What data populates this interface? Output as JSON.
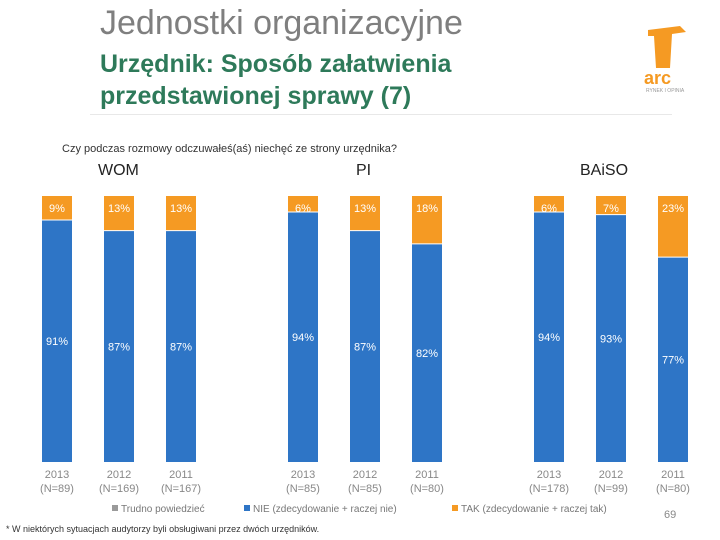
{
  "header": {
    "title": "Jednostki organizacyjne",
    "subtitle_line1": "Urzędnik: Sposób załatwienia",
    "subtitle_line2": "przedstawionej sprawy (7)"
  },
  "logo": {
    "text": "arc",
    "tagline": "RYNEK I OPINIA"
  },
  "question": "Czy podczas rozmowy odczuwałeś(aś) niechęć ze strony urzędnika?",
  "footnote": "* W niektórych sytuacjach audytorzy byli obsługiwani przez dwóch urzędników.",
  "page_number": "69",
  "colors": {
    "nie": "#2e75c6",
    "tak": "#f59a23",
    "trudno": "#9a9a9a"
  },
  "chart_data": {
    "type": "bar",
    "stacked": true,
    "ylim": [
      0,
      100
    ],
    "groups": [
      {
        "name": "WOM",
        "bars": [
          {
            "year": "2013",
            "n": "(N=89)",
            "nie": 91,
            "tak": 9,
            "nie_label": "91%",
            "tak_label": "9%"
          },
          {
            "year": "2012",
            "n": "(N=169)",
            "nie": 87,
            "tak": 13,
            "nie_label": "87%",
            "tak_label": "13%"
          },
          {
            "year": "2011",
            "n": "(N=167)",
            "nie": 87,
            "tak": 13,
            "nie_label": "87%",
            "tak_label": "13%"
          }
        ]
      },
      {
        "name": "PI",
        "bars": [
          {
            "year": "2013",
            "n": "(N=85)",
            "nie": 94,
            "tak": 6,
            "nie_label": "94%",
            "tak_label": "6%"
          },
          {
            "year": "2012",
            "n": "(N=85)",
            "nie": 87,
            "tak": 13,
            "nie_label": "87%",
            "tak_label": "13%"
          },
          {
            "year": "2011",
            "n": "(N=80)",
            "nie": 82,
            "tak": 18,
            "nie_label": "82%",
            "tak_label": "18%"
          }
        ]
      },
      {
        "name": "BAiSO",
        "bars": [
          {
            "year": "2013",
            "n": "(N=178)",
            "nie": 94,
            "tak": 6,
            "nie_label": "94%",
            "tak_label": "6%"
          },
          {
            "year": "2012",
            "n": "(N=99)",
            "nie": 93,
            "tak": 7,
            "nie_label": "93%",
            "tak_label": "7%"
          },
          {
            "year": "2011",
            "n": "(N=80)",
            "nie": 77,
            "tak": 23,
            "nie_label": "77%",
            "tak_label": "23%"
          }
        ]
      }
    ],
    "legend": [
      {
        "key": "trudno",
        "label": "Trudno powiedzieć"
      },
      {
        "key": "nie",
        "label": "NIE (zdecydowanie + raczej nie)"
      },
      {
        "key": "tak",
        "label": "TAK (zdecydowanie + raczej tak)"
      }
    ]
  }
}
